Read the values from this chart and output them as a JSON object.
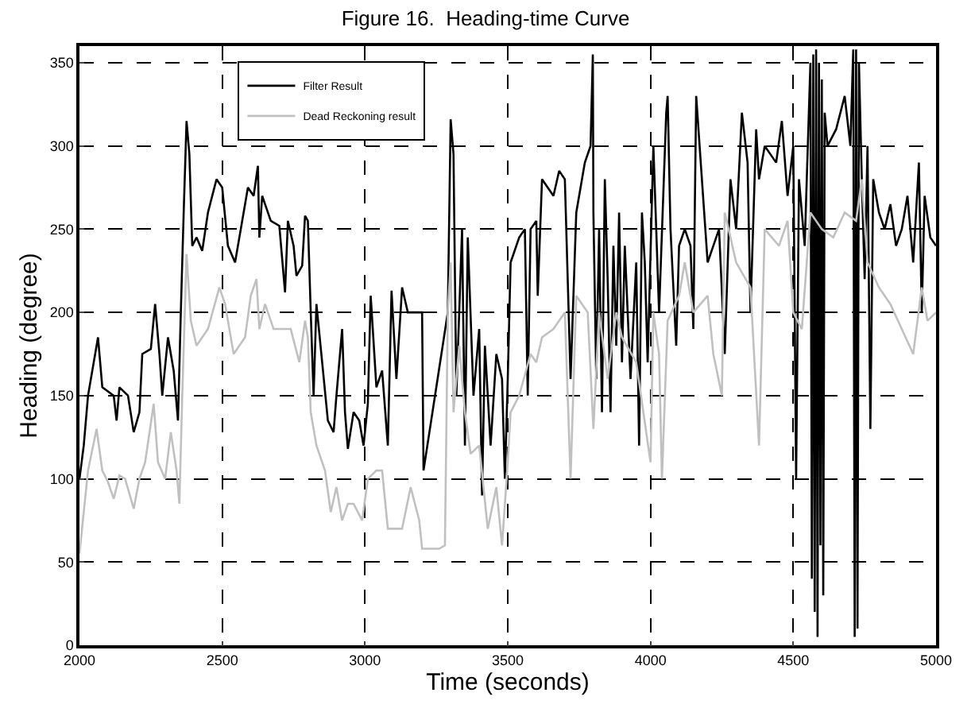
{
  "chart_data": {
    "type": "line",
    "title": "Figure 16.  Heading-time Curve",
    "xlabel": "Time (seconds)",
    "ylabel": "Heading (degree)",
    "xlim": [
      2000,
      5000
    ],
    "xticks": [
      2000,
      2500,
      3000,
      3500,
      4000,
      4500,
      5000
    ],
    "ylim": [
      0,
      360
    ],
    "yticks": [
      0,
      50,
      100,
      150,
      200,
      250,
      300,
      350
    ],
    "grid": true,
    "legend": "top left",
    "line_style": "solid",
    "marker": "none",
    "series": [
      {
        "name": "Filter Result",
        "color": "#000000",
        "x": [
          2000,
          2015,
          2030,
          2065,
          2080,
          2120,
          2130,
          2140,
          2170,
          2190,
          2210,
          2220,
          2250,
          2265,
          2280,
          2290,
          2310,
          2330,
          2345,
          2355,
          2365,
          2375,
          2385,
          2395,
          2410,
          2430,
          2450,
          2480,
          2500,
          2520,
          2545,
          2560,
          2590,
          2610,
          2625,
          2630,
          2640,
          2670,
          2700,
          2720,
          2730,
          2750,
          2760,
          2780,
          2790,
          2800,
          2810,
          2820,
          2830,
          2850,
          2870,
          2890,
          2900,
          2920,
          2930,
          2940,
          2960,
          2980,
          2995,
          3010,
          3020,
          3040,
          3060,
          3080,
          3093,
          3110,
          3130,
          3150,
          3200,
          3205,
          3290,
          3300,
          3310,
          3320,
          3340,
          3350,
          3360,
          3380,
          3400,
          3410,
          3420,
          3440,
          3460,
          3480,
          3490,
          3500,
          3510,
          3540,
          3560,
          3570,
          3580,
          3600,
          3605,
          3620,
          3660,
          3680,
          3700,
          3720,
          3740,
          3770,
          3790,
          3798,
          3800,
          3810,
          3820,
          3830,
          3840,
          3850,
          3860,
          3870,
          3880,
          3890,
          3900,
          3910,
          3930,
          3950,
          3960,
          3970,
          3980,
          3990,
          4010,
          4030,
          4055,
          4060,
          4070,
          4090,
          4100,
          4120,
          4140,
          4150,
          4160,
          4180,
          4200,
          4220,
          4240,
          4260,
          4280,
          4300,
          4320,
          4340,
          4350,
          4370,
          4380,
          4400,
          4420,
          4440,
          4460,
          4480,
          4500,
          4510,
          4520,
          4540,
          4560,
          4565,
          4570,
          4575,
          4580,
          4585,
          4590,
          4595,
          4600,
          4605,
          4610,
          4620,
          4650,
          4680,
          4700,
          4710,
          4715,
          4720,
          4725,
          4730,
          4740,
          4750,
          4760,
          4770,
          4780,
          4800,
          4820,
          4840,
          4860,
          4880,
          4900,
          4920,
          4940,
          4950,
          4960,
          4980,
          5000
        ],
        "values": [
          100,
          120,
          150,
          185,
          155,
          150,
          135,
          155,
          150,
          128,
          140,
          175,
          178,
          205,
          175,
          150,
          185,
          165,
          135,
          200,
          260,
          315,
          295,
          240,
          245,
          237,
          260,
          280,
          275,
          240,
          230,
          245,
          275,
          270,
          288,
          245,
          270,
          255,
          252,
          212,
          255,
          240,
          222,
          228,
          258,
          255,
          200,
          150,
          205,
          170,
          135,
          128,
          150,
          190,
          140,
          118,
          140,
          135,
          120,
          145,
          210,
          155,
          165,
          120,
          213,
          160,
          215,
          200,
          200,
          105,
          200,
          316,
          295,
          150,
          250,
          120,
          245,
          150,
          190,
          90,
          180,
          120,
          175,
          160,
          100,
          160,
          230,
          245,
          250,
          150,
          250,
          255,
          210,
          280,
          270,
          285,
          280,
          160,
          260,
          290,
          300,
          355,
          260,
          160,
          250,
          140,
          280,
          220,
          140,
          240,
          180,
          260,
          170,
          240,
          160,
          230,
          120,
          260,
          230,
          170,
          300,
          200,
          320,
          330,
          250,
          180,
          240,
          250,
          240,
          190,
          330,
          280,
          230,
          240,
          250,
          175,
          280,
          250,
          320,
          290,
          200,
          310,
          280,
          300,
          295,
          290,
          315,
          270,
          300,
          100,
          280,
          240,
          350,
          40,
          355,
          20,
          358,
          5,
          350,
          60,
          340,
          30,
          320,
          300,
          310,
          330,
          300,
          358,
          5,
          358,
          10,
          350,
          280,
          220,
          300,
          130,
          280,
          260,
          250,
          265,
          240,
          250,
          270,
          230,
          290,
          200,
          270,
          245,
          240
        ]
      },
      {
        "name": "Dead Reckoning result",
        "color": "#c0c0c0",
        "x": [
          2000,
          2015,
          2030,
          2060,
          2080,
          2100,
          2120,
          2140,
          2160,
          2190,
          2210,
          2230,
          2260,
          2275,
          2300,
          2320,
          2340,
          2350,
          2360,
          2375,
          2390,
          2410,
          2450,
          2490,
          2510,
          2540,
          2580,
          2600,
          2620,
          2630,
          2650,
          2680,
          2740,
          2770,
          2790,
          2800,
          2810,
          2830,
          2860,
          2880,
          2900,
          2920,
          2940,
          2960,
          2990,
          3010,
          3040,
          3060,
          3080,
          3130,
          3160,
          3190,
          3200,
          3260,
          3280,
          3290,
          3300,
          3310,
          3330,
          3350,
          3370,
          3400,
          3430,
          3460,
          3480,
          3500,
          3510,
          3540,
          3580,
          3600,
          3620,
          3660,
          3700,
          3720,
          3740,
          3780,
          3800,
          3820,
          3850,
          3880,
          3900,
          3950,
          4000,
          4010,
          4030,
          4040,
          4060,
          4100,
          4120,
          4150,
          4200,
          4220,
          4250,
          4260,
          4300,
          4350,
          4380,
          4400,
          4450,
          4480,
          4500,
          4530,
          4560,
          4600,
          4640,
          4680,
          4720,
          4740,
          4760,
          4800,
          4840,
          4880,
          4920,
          4950,
          4970,
          5000
        ],
        "values": [
          55,
          80,
          105,
          130,
          105,
          98,
          88,
          102,
          100,
          82,
          100,
          110,
          145,
          110,
          100,
          128,
          105,
          85,
          150,
          235,
          195,
          180,
          190,
          215,
          205,
          175,
          185,
          210,
          220,
          190,
          205,
          190,
          190,
          170,
          195,
          185,
          140,
          120,
          105,
          80,
          95,
          75,
          85,
          85,
          75,
          100,
          105,
          105,
          70,
          70,
          95,
          75,
          58,
          58,
          60,
          200,
          230,
          140,
          180,
          140,
          115,
          120,
          70,
          95,
          60,
          110,
          140,
          150,
          175,
          170,
          185,
          190,
          200,
          100,
          210,
          200,
          130,
          200,
          160,
          200,
          185,
          170,
          110,
          200,
          175,
          100,
          195,
          210,
          230,
          200,
          210,
          175,
          150,
          260,
          230,
          215,
          120,
          250,
          240,
          255,
          200,
          190,
          260,
          250,
          245,
          260,
          255,
          280,
          230,
          215,
          205,
          190,
          175,
          215,
          195,
          200
        ]
      }
    ]
  }
}
